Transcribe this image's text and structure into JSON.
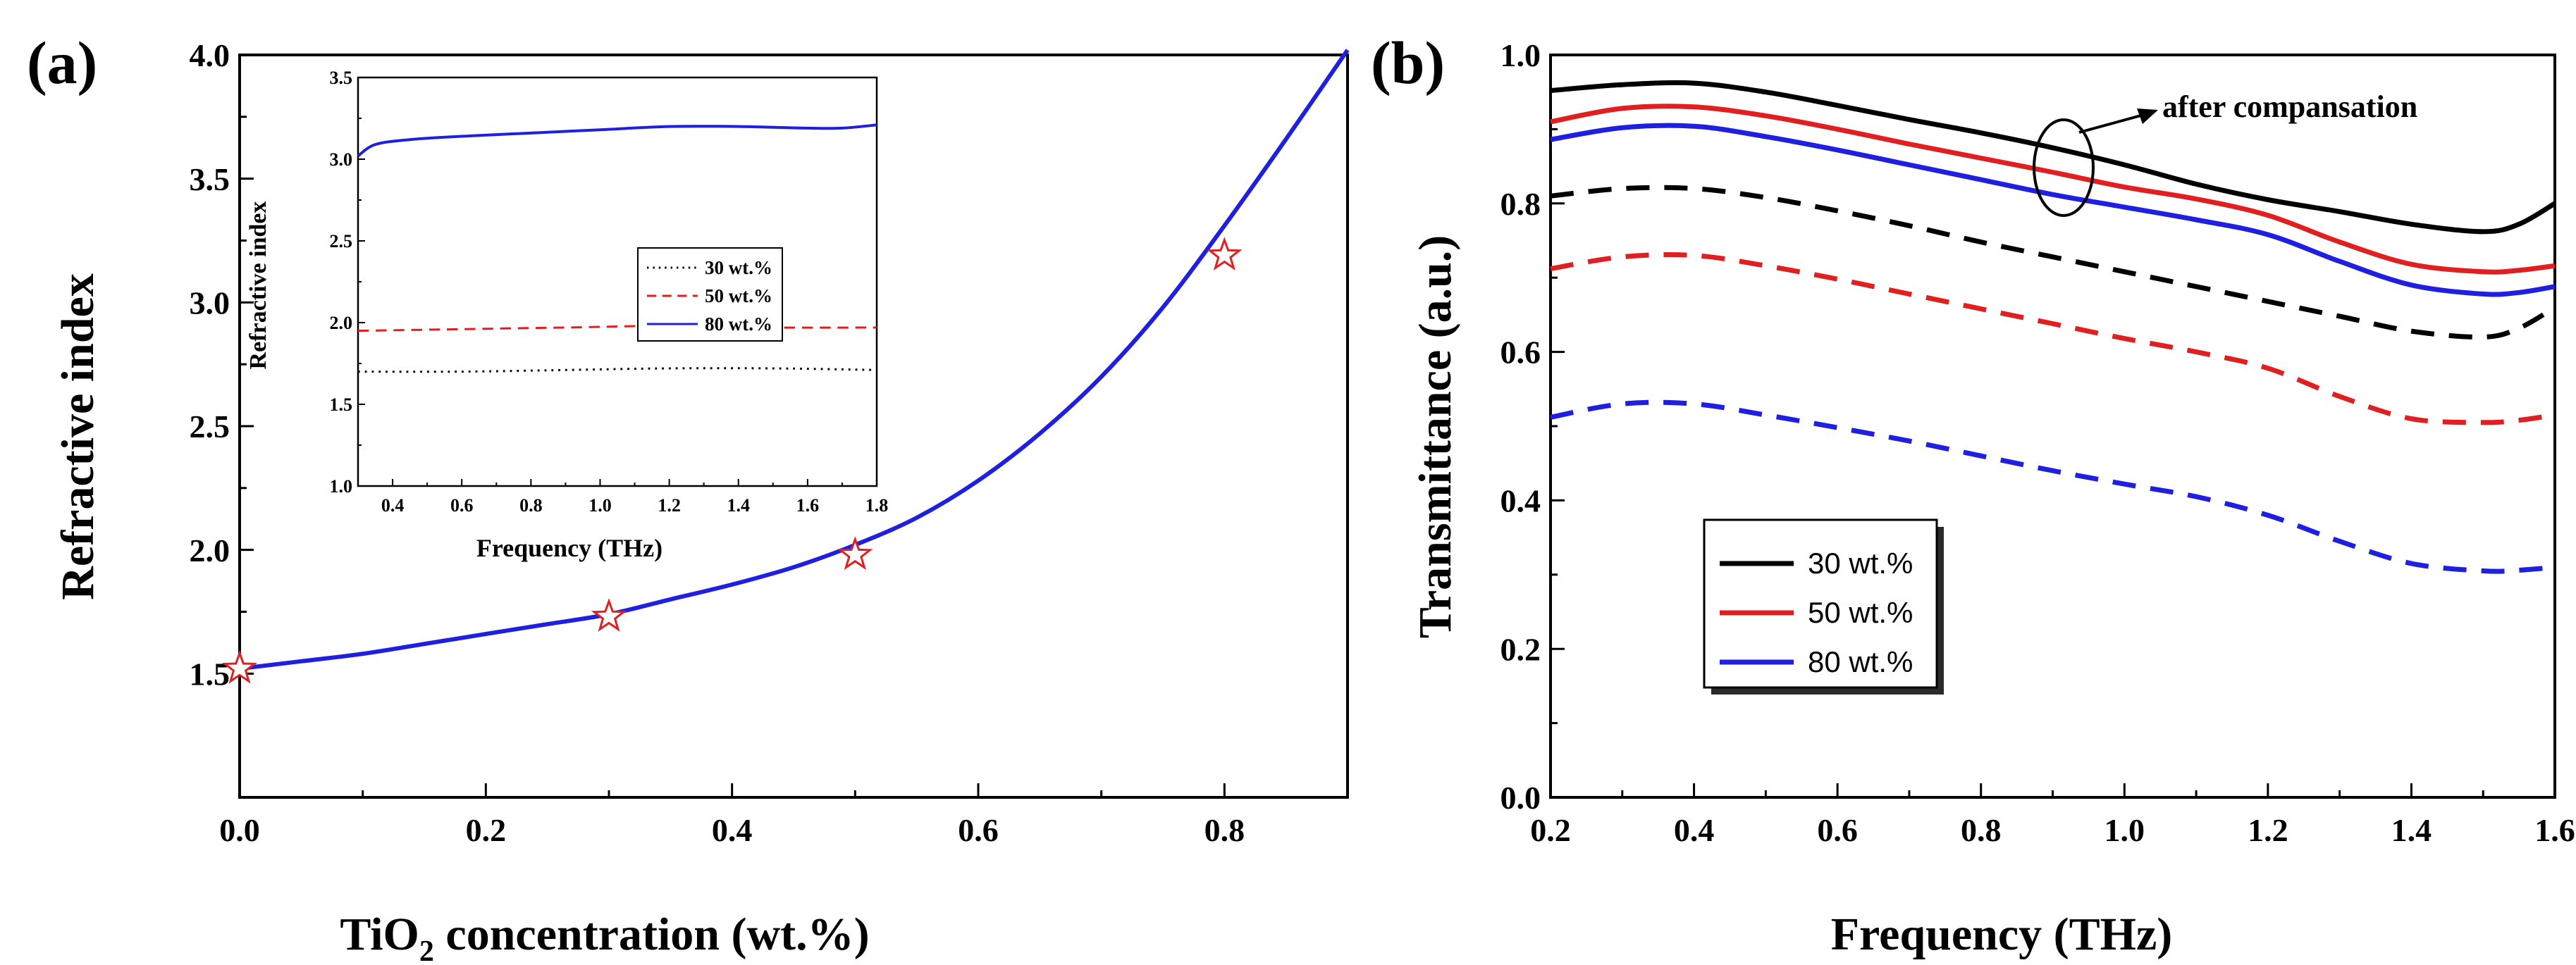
{
  "chart_data": [
    {
      "type": "line",
      "panel_label": "(a)",
      "xlabel_main": "TiO",
      "xlabel_sub": "2",
      "xlabel_rest": " concentration (wt.%)",
      "ylabel": "Refractive index",
      "xlim": [
        0.0,
        0.9
      ],
      "ylim": [
        1.0,
        4.0
      ],
      "xticks": [
        "0.0",
        "0.2",
        "0.4",
        "0.6",
        "0.8"
      ],
      "yticks": [
        "1.5",
        "2.0",
        "2.5",
        "3.0",
        "3.5",
        "4.0"
      ],
      "series": [
        {
          "kind": "fit-line",
          "color": "#1f1fe0",
          "x": [
            0.0,
            0.05,
            0.1,
            0.15,
            0.2,
            0.25,
            0.3,
            0.35,
            0.4,
            0.45,
            0.5,
            0.55,
            0.6,
            0.65,
            0.7,
            0.75,
            0.8,
            0.85,
            0.9
          ],
          "y": [
            1.52,
            1.55,
            1.58,
            1.62,
            1.66,
            1.7,
            1.74,
            1.8,
            1.86,
            1.93,
            2.02,
            2.13,
            2.28,
            2.47,
            2.7,
            2.98,
            3.31,
            3.66,
            4.02
          ]
        },
        {
          "kind": "markers",
          "marker": "star",
          "color": "#e02020",
          "x": [
            0.0,
            0.3,
            0.5,
            0.8
          ],
          "y": [
            1.52,
            1.73,
            1.98,
            3.19
          ]
        }
      ],
      "inset": {
        "xlabel": "Frequency (THz)",
        "ylabel": "Refractive index",
        "xlim": [
          0.3,
          1.8
        ],
        "ylim": [
          1.0,
          3.5
        ],
        "xticks": [
          "0.4",
          "0.6",
          "0.8",
          "1.0",
          "1.2",
          "1.4",
          "1.6",
          "1.8"
        ],
        "yticks": [
          "1.0",
          "1.5",
          "2.0",
          "2.5",
          "3.0",
          "3.5"
        ],
        "series": [
          {
            "name": "30 wt.%",
            "color": "#000000",
            "dash": "dot",
            "x": [
              0.3,
              0.6,
              0.9,
              1.2,
              1.5,
              1.8
            ],
            "y": [
              1.7,
              1.7,
              1.71,
              1.72,
              1.72,
              1.71
            ]
          },
          {
            "name": "50 wt.%",
            "color": "#e02020",
            "dash": "dash",
            "x": [
              0.3,
              0.6,
              0.9,
              1.2,
              1.5,
              1.8
            ],
            "y": [
              1.95,
              1.96,
              1.97,
              1.98,
              1.97,
              1.97
            ]
          },
          {
            "name": "80 wt.%",
            "color": "#1f1fe0",
            "dash": "solid",
            "x": [
              0.3,
              0.35,
              0.45,
              0.6,
              0.8,
              1.0,
              1.2,
              1.4,
              1.6,
              1.7,
              1.8
            ],
            "y": [
              3.02,
              3.09,
              3.12,
              3.14,
              3.16,
              3.18,
              3.2,
              3.2,
              3.19,
              3.19,
              3.21
            ]
          }
        ]
      }
    },
    {
      "type": "line",
      "panel_label": "(b)",
      "xlabel": "Frequency (THz)",
      "ylabel": "Transmittance (a.u.)",
      "xlim": [
        0.2,
        1.6
      ],
      "ylim": [
        0.0,
        1.0
      ],
      "xticks": [
        "0.2",
        "0.4",
        "0.6",
        "0.8",
        "1.0",
        "1.2",
        "1.4",
        "1.6"
      ],
      "yticks": [
        "0.0",
        "0.2",
        "0.4",
        "0.6",
        "0.8",
        "1.0"
      ],
      "annotation": "after compansation",
      "legend": [
        {
          "name": "30 wt.%",
          "color": "#000000"
        },
        {
          "name": "50 wt.%",
          "color": "#e02020"
        },
        {
          "name": "80 wt.%",
          "color": "#1f1fe0"
        }
      ],
      "series": [
        {
          "name": "30 wt.%",
          "group": "after",
          "color": "#000000",
          "dash": "solid",
          "x": [
            0.2,
            0.3,
            0.4,
            0.5,
            0.6,
            0.7,
            0.8,
            0.9,
            1.0,
            1.1,
            1.2,
            1.3,
            1.4,
            1.5,
            1.55,
            1.6
          ],
          "y": [
            0.952,
            0.96,
            0.962,
            0.95,
            0.932,
            0.913,
            0.895,
            0.875,
            0.852,
            0.826,
            0.805,
            0.789,
            0.772,
            0.762,
            0.772,
            0.8
          ]
        },
        {
          "name": "50 wt.%",
          "group": "after",
          "color": "#e02020",
          "dash": "solid",
          "x": [
            0.2,
            0.3,
            0.4,
            0.5,
            0.6,
            0.7,
            0.8,
            0.9,
            1.0,
            1.1,
            1.2,
            1.3,
            1.4,
            1.5,
            1.55,
            1.6
          ],
          "y": [
            0.91,
            0.928,
            0.93,
            0.918,
            0.9,
            0.88,
            0.861,
            0.842,
            0.822,
            0.806,
            0.784,
            0.748,
            0.718,
            0.708,
            0.71,
            0.716
          ]
        },
        {
          "name": "80 wt.%",
          "group": "after",
          "color": "#1f1fe0",
          "dash": "solid",
          "x": [
            0.2,
            0.3,
            0.4,
            0.5,
            0.6,
            0.7,
            0.8,
            0.9,
            1.0,
            1.1,
            1.2,
            1.3,
            1.4,
            1.5,
            1.55,
            1.6
          ],
          "y": [
            0.886,
            0.902,
            0.904,
            0.89,
            0.872,
            0.852,
            0.832,
            0.812,
            0.795,
            0.778,
            0.758,
            0.722,
            0.69,
            0.678,
            0.68,
            0.688
          ]
        },
        {
          "name": "30 wt.%",
          "group": "before",
          "color": "#000000",
          "dash": "dash",
          "x": [
            0.2,
            0.3,
            0.4,
            0.5,
            0.6,
            0.7,
            0.8,
            0.9,
            1.0,
            1.1,
            1.2,
            1.3,
            1.4,
            1.5,
            1.55,
            1.6
          ],
          "y": [
            0.81,
            0.82,
            0.82,
            0.808,
            0.79,
            0.77,
            0.748,
            0.728,
            0.708,
            0.688,
            0.668,
            0.648,
            0.628,
            0.62,
            0.632,
            0.66
          ]
        },
        {
          "name": "50 wt.%",
          "group": "before",
          "color": "#e02020",
          "dash": "dash",
          "x": [
            0.2,
            0.3,
            0.4,
            0.5,
            0.6,
            0.7,
            0.8,
            0.9,
            1.0,
            1.1,
            1.2,
            1.3,
            1.4,
            1.5,
            1.55,
            1.6
          ],
          "y": [
            0.712,
            0.728,
            0.73,
            0.716,
            0.698,
            0.678,
            0.658,
            0.638,
            0.618,
            0.6,
            0.578,
            0.54,
            0.51,
            0.505,
            0.508,
            0.515
          ]
        },
        {
          "name": "80 wt.%",
          "group": "before",
          "color": "#1f1fe0",
          "dash": "dash",
          "x": [
            0.2,
            0.3,
            0.4,
            0.5,
            0.6,
            0.7,
            0.8,
            0.9,
            1.0,
            1.1,
            1.2,
            1.3,
            1.4,
            1.5,
            1.55,
            1.6
          ],
          "y": [
            0.512,
            0.53,
            0.53,
            0.515,
            0.498,
            0.48,
            0.46,
            0.44,
            0.422,
            0.405,
            0.38,
            0.345,
            0.315,
            0.305,
            0.306,
            0.31
          ]
        }
      ]
    }
  ]
}
